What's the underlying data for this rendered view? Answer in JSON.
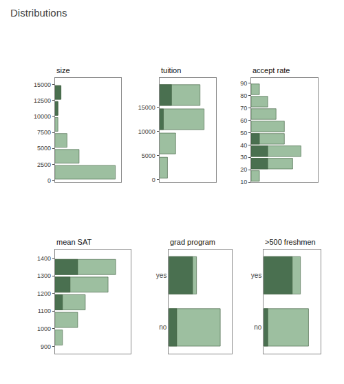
{
  "title": "Distributions",
  "chart_data": [
    {
      "type": "histogram",
      "orientation": "horizontal",
      "title": "size",
      "bins": [
        0,
        2500,
        5000,
        7500,
        10000,
        12500,
        15000
      ],
      "series": [
        {
          "values": [
            20,
            8,
            4,
            1,
            1,
            2
          ],
          "color": "#9dbfA0"
        },
        {
          "values": [
            0,
            0,
            0,
            0,
            1,
            2
          ],
          "color": "#4a7050"
        }
      ],
      "stacked": false,
      "ylim": [
        -300,
        16000
      ],
      "yticks": [
        0,
        2500,
        5000,
        7500,
        10000,
        12500,
        15000
      ],
      "xlim": [
        0,
        22
      ],
      "grid": false,
      "tick_labels": "y"
    },
    {
      "type": "histogram",
      "orientation": "horizontal",
      "title": "tuition",
      "bins": [
        0,
        5000,
        10000,
        15000,
        20000
      ],
      "series": [
        {
          "values": [
            2,
            4,
            11,
            10
          ],
          "color": "#9dbfA0"
        },
        {
          "values": [
            0,
            0,
            1,
            3
          ],
          "color": "#4a7050"
        }
      ],
      "stacked": false,
      "ylim": [
        -500,
        21000
      ],
      "yticks": [
        0,
        5000,
        10000,
        15000
      ],
      "xlim": [
        0,
        14
      ],
      "grid": false,
      "tick_labels": "y"
    },
    {
      "type": "histogram",
      "orientation": "horizontal",
      "title": "accept rate",
      "bins": [
        10,
        20,
        30,
        40,
        50,
        60,
        70,
        80,
        90
      ],
      "series": [
        {
          "values": [
            1,
            5,
            6,
            4,
            4,
            3,
            2,
            1
          ],
          "color": "#9dbfA0"
        },
        {
          "values": [
            0,
            2,
            2,
            1,
            0,
            0,
            0,
            0
          ],
          "color": "#4a7050"
        }
      ],
      "stacked": false,
      "ylim": [
        10,
        94
      ],
      "yticks": [
        10,
        20,
        30,
        40,
        50,
        60,
        70,
        80,
        90
      ],
      "xlim": [
        0,
        8
      ],
      "grid": false,
      "tick_labels": "y"
    },
    {
      "type": "histogram",
      "orientation": "horizontal",
      "title": "mean SAT",
      "bins": [
        900,
        1000,
        1100,
        1200,
        1300,
        1400
      ],
      "series": [
        {
          "values": [
            1,
            3,
            4,
            7,
            8
          ],
          "color": "#9dbfA0"
        },
        {
          "values": [
            0,
            0,
            1,
            2,
            3
          ],
          "color": "#4a7050"
        }
      ],
      "stacked": false,
      "ylim": [
        860,
        1450
      ],
      "yticks": [
        900,
        1000,
        1100,
        1200,
        1300,
        1400
      ],
      "xlim": [
        0,
        10
      ],
      "grid": false,
      "tick_labels": "y"
    },
    {
      "type": "bar",
      "orientation": "horizontal",
      "title": "grad program",
      "categories": [
        "no",
        "yes"
      ],
      "series": [
        {
          "values": [
            13,
            7
          ],
          "color": "#9dbfA0"
        },
        {
          "values": [
            2,
            6
          ],
          "color": "#4a7050"
        }
      ],
      "stacked": false,
      "xlim": [
        0,
        16
      ],
      "grid": false,
      "tick_labels": "y"
    },
    {
      "type": "bar",
      "orientation": "horizontal",
      "title": ">500 freshmen",
      "categories": [
        "no",
        "yes"
      ],
      "series": [
        {
          "values": [
            11,
            9
          ],
          "color": "#9dbfA0"
        },
        {
          "values": [
            1,
            7
          ],
          "color": "#4a7050"
        }
      ],
      "stacked": false,
      "xlim": [
        0,
        14
      ],
      "grid": false,
      "tick_labels": "y"
    }
  ]
}
